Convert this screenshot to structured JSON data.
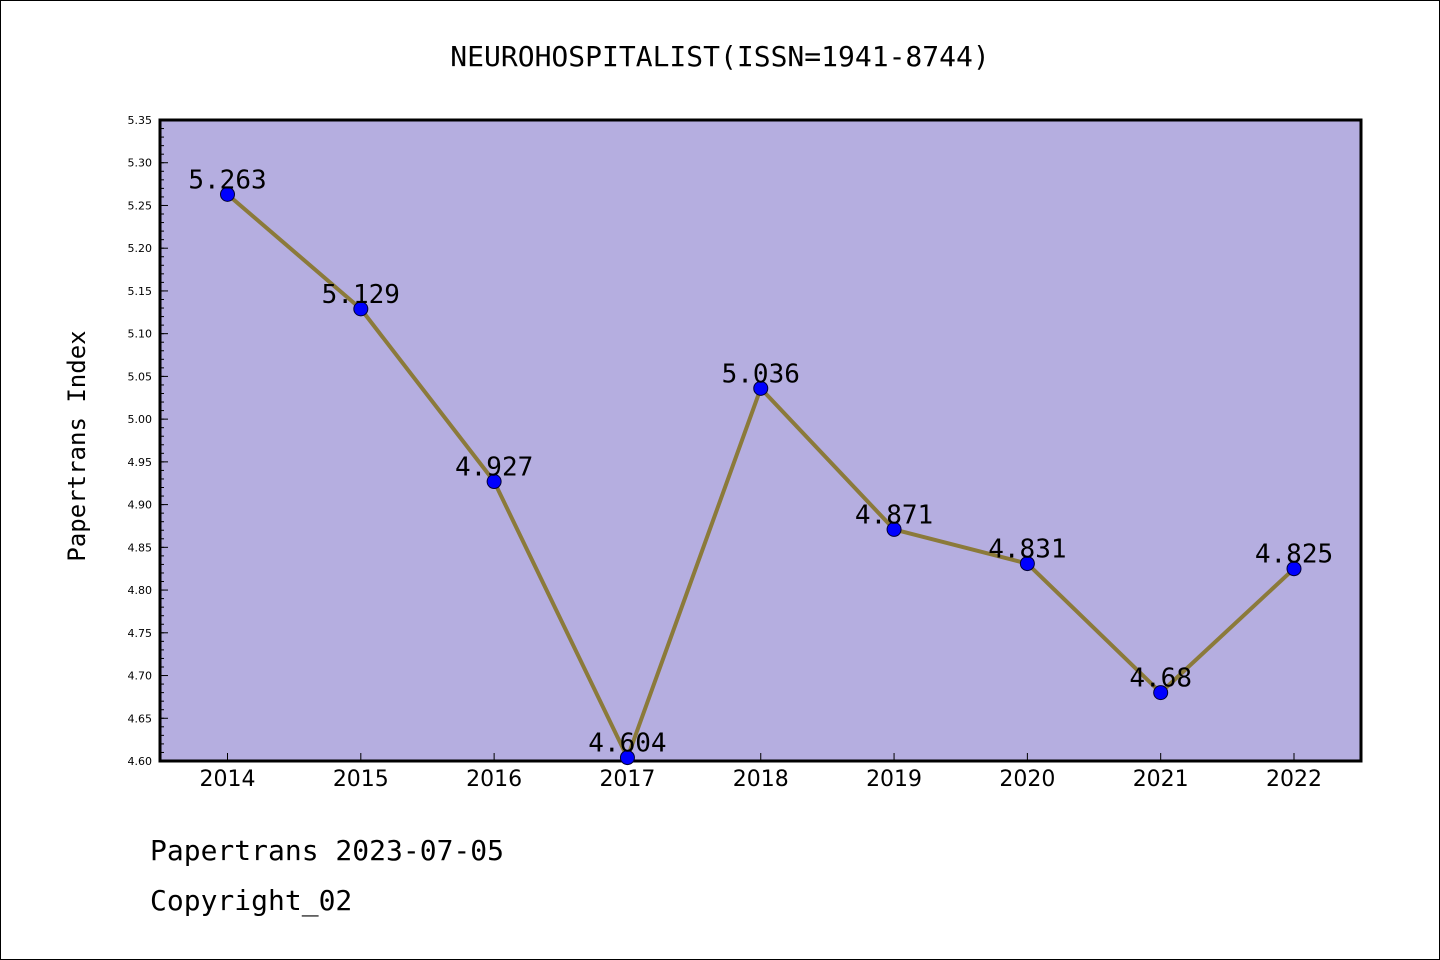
{
  "chart_data": {
    "type": "line",
    "title": "NEUROHOSPITALIST(ISSN=1941-8744)",
    "xlabel": "",
    "ylabel": "Papertrans Index",
    "categories": [
      "2014",
      "2015",
      "2016",
      "2017",
      "2018",
      "2019",
      "2020",
      "2021",
      "2022"
    ],
    "series": [
      {
        "values": [
          5.263,
          5.129,
          4.927,
          4.604,
          5.036,
          4.871,
          4.831,
          4.68,
          4.825
        ],
        "data_labels": [
          "5.263",
          "5.129",
          "4.927",
          "4.604",
          "5.036",
          "4.871",
          "4.831",
          "4.68",
          "4.825"
        ],
        "line_color": "#8b7a3a",
        "marker_color": "#0000ff"
      }
    ],
    "ylim": [
      4.6,
      5.35
    ],
    "yticks": [
      "4.60",
      "4.65",
      "4.70",
      "4.75",
      "4.80",
      "4.85",
      "4.90",
      "4.95",
      "5.00",
      "5.05",
      "5.10",
      "5.15",
      "5.20",
      "5.25",
      "5.30",
      "5.35"
    ],
    "grid": false,
    "legend": "none",
    "plot_background": "#b5aee0"
  },
  "footer": {
    "date_line": "Papertrans 2023-07-05",
    "copyright_line": "Copyright_02"
  }
}
